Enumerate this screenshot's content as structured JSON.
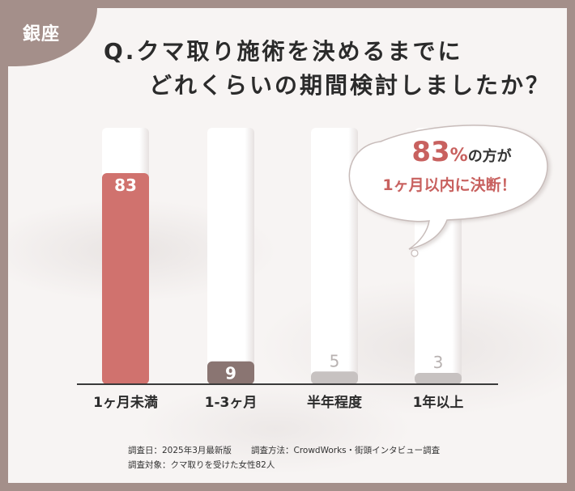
{
  "badge": "銀座",
  "title": {
    "line1": "Q.クマ取り施術を決めるまでに",
    "line2": "どれくらいの期間検討しましたか？"
  },
  "callout": {
    "percent": "83",
    "percent_unit": "%",
    "suffix": "の方が",
    "line2": "1ヶ月以内に決断！"
  },
  "footer": {
    "survey_date": "調査日：2025年3月最新版",
    "survey_method": "調査方法：CrowdWorks・街頭インタビュー調査",
    "survey_target": "調査対象：クマ取りを受けた女性82人"
  },
  "colors": {
    "highlight": "#d0726e",
    "secondary": "#8a7572",
    "muted": "#c7c2c1",
    "frame": "#a48f8a"
  },
  "chart_data": {
    "type": "bar",
    "title": "",
    "xlabel": "",
    "ylabel": "",
    "categories": [
      "1ヶ月未満",
      "1-3ヶ月",
      "半年程度",
      "1年以上"
    ],
    "values": [
      83,
      9,
      5,
      3
    ],
    "ylim": [
      0,
      100
    ],
    "grid": false,
    "legend": "none"
  }
}
